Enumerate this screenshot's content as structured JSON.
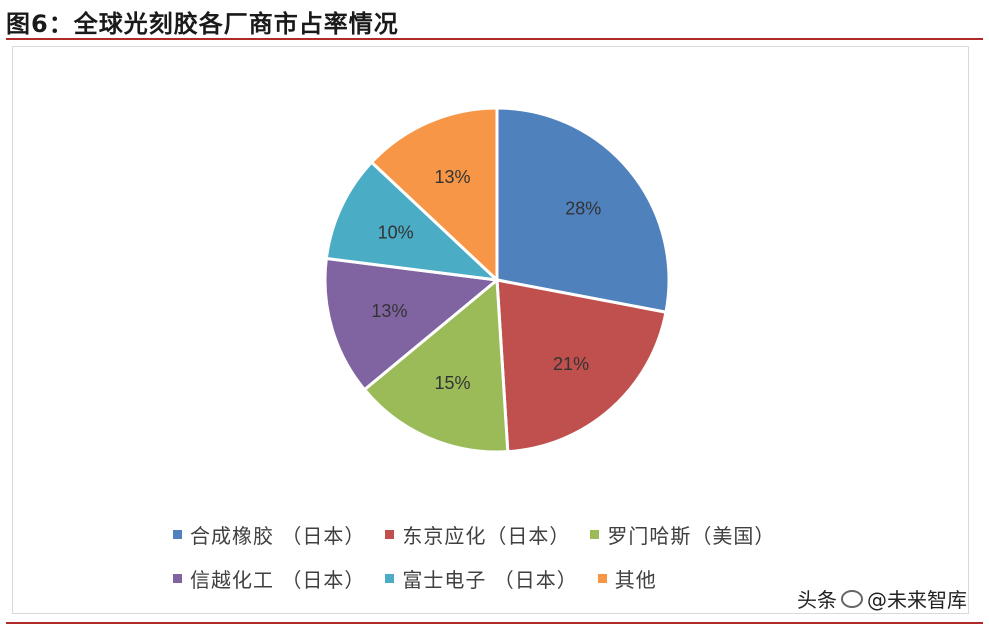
{
  "header": {
    "title": "图6：全球光刻胶各厂商市占率情况"
  },
  "chart_data": {
    "type": "pie",
    "title": "",
    "slices": [
      {
        "name": "合成橡胶 （日本）",
        "value": 28,
        "label": "28%",
        "color": "#4F81BD"
      },
      {
        "name": "东京应化（日本）",
        "value": 21,
        "label": "21%",
        "color": "#C0504D"
      },
      {
        "name": "罗门哈斯（美国）",
        "value": 15,
        "label": "15%",
        "color": "#9BBB59"
      },
      {
        "name": "信越化工 （日本）",
        "value": 13,
        "label": "13%",
        "color": "#8064A2"
      },
      {
        "name": "富士电子 （日本）",
        "value": 10,
        "label": "10%",
        "color": "#4BACC6"
      },
      {
        "name": "其他",
        "value": 13,
        "label": "13%",
        "color": "#F79646"
      }
    ],
    "legend_position": "bottom",
    "legend_rows": [
      [
        0,
        1,
        2
      ],
      [
        3,
        4,
        5
      ]
    ]
  },
  "watermark": {
    "prefix": "头条",
    "text": "@未来智库"
  }
}
